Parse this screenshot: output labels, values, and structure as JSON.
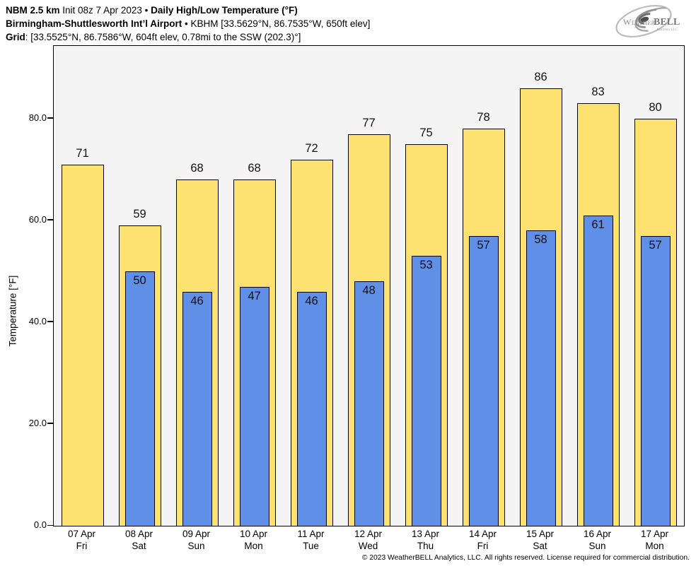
{
  "header": {
    "line1": {
      "model": "NBM 2.5 km",
      "init": " Init 08z 7 Apr 2023 • ",
      "product": "Daily High/Low Temperature (°F)"
    },
    "line2": {
      "station": "Birmingham-Shuttlesworth Int’l Airport",
      "details": " • KBHM [33.5629°N, 86.7535°W, 650ft elev]"
    },
    "line3": {
      "label": "Grid",
      "details": ": [33.5525°N, 86.7586°W, 604ft elev, 0.78mi to the SSW (202.3)°]"
    }
  },
  "logo": {
    "weather": "Weather",
    "bell": "BELL",
    "sub": "Analytics LLC"
  },
  "footer": {
    "copyright": "© 2023 WeatherBELL Analytics, LLC. All rights reserved. License required for commercial distribution."
  },
  "chart_data": {
    "type": "bar",
    "title": "NBM 2.5 km Init 08z 7 Apr 2023 • Daily High/Low Temperature (°F)",
    "subtitle": "Birmingham-Shuttlesworth Int’l Airport • KBHM [33.5629°N, 86.7535°W, 650ft elev]",
    "xlabel": "",
    "ylabel": "Temperature [°F]",
    "ylim": [
      0,
      94.3
    ],
    "yticks": [
      "0.0",
      "20.0",
      "40.0",
      "60.0",
      "80.0"
    ],
    "grid": false,
    "legend": "none",
    "categories": [
      {
        "date": "07 Apr",
        "day": "Fri"
      },
      {
        "date": "08 Apr",
        "day": "Sat"
      },
      {
        "date": "09 Apr",
        "day": "Sun"
      },
      {
        "date": "10 Apr",
        "day": "Mon"
      },
      {
        "date": "11 Apr",
        "day": "Tue"
      },
      {
        "date": "12 Apr",
        "day": "Wed"
      },
      {
        "date": "13 Apr",
        "day": "Thu"
      },
      {
        "date": "14 Apr",
        "day": "Fri"
      },
      {
        "date": "15 Apr",
        "day": "Sat"
      },
      {
        "date": "16 Apr",
        "day": "Sun"
      },
      {
        "date": "17 Apr",
        "day": "Mon"
      }
    ],
    "series": [
      {
        "name": "High",
        "color": "#FDE272",
        "values": [
          71,
          59,
          68,
          68,
          72,
          77,
          75,
          78,
          86,
          83,
          80
        ]
      },
      {
        "name": "Low",
        "color": "#608FE8",
        "values": [
          null,
          50,
          46,
          47,
          46,
          48,
          53,
          57,
          58,
          61,
          57
        ]
      }
    ],
    "colors": {
      "bar_border": "#000000",
      "plot_bg": "#F4F4F4",
      "figure_bg": "#FFFFFF"
    }
  }
}
